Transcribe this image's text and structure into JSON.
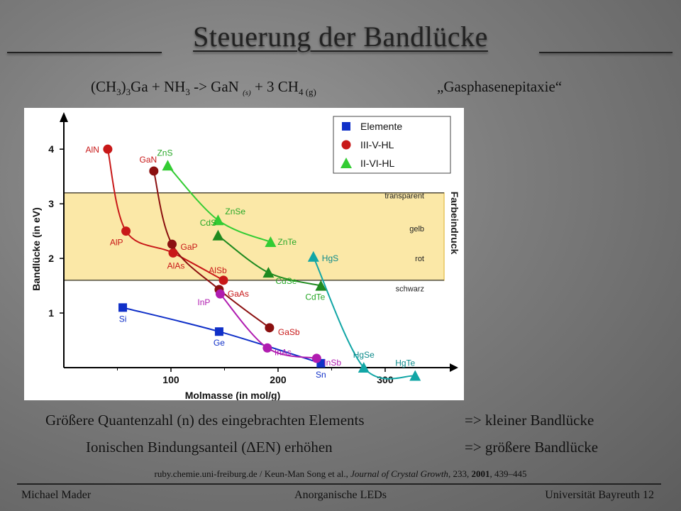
{
  "slide": {
    "title": "Steuerung der Bandlücke",
    "reaction": {
      "p1": "(CH",
      "s1": "3",
      "p2": ")",
      "s2": "3",
      "p3": "Ga + NH",
      "s3": "3",
      "p4": " -> GaN ",
      "s4": "(s)",
      "p5": " + 3 CH",
      "s5": "4",
      "s6": " (g)"
    },
    "epitaxy": "„Gasphasenepitaxie“",
    "statement1": "Größere Quantenzahl (n) des eingebrachten Elements",
    "arrow1": "=> kleiner Bandlücke",
    "statement2": "Ionischen Bindungsanteil (ΔEN) erhöhen",
    "arrow2": "=> größere Bandlücke",
    "reference": {
      "source": "ruby.chemie.uni-freiburg.de  /  Keun-Man Song et al., ",
      "journal": "Journal of Crystal Growth",
      "vol": ", 233, ",
      "year": "2001",
      "pages": ",  439–445"
    },
    "footer": {
      "left": "Michael Mader",
      "center": "Anorganische LEDs",
      "right": "Universität Bayreuth  12"
    }
  },
  "chart_data": {
    "type": "scatter",
    "xlabel": "Molmasse (in mol/g)",
    "ylabel": "Bandlücke  (in eV)",
    "right_label": "Farbeindruck",
    "xlim": [
      0,
      355
    ],
    "ylim": [
      0,
      4.6
    ],
    "xticks": [
      100,
      200,
      300
    ],
    "yticks": [
      1,
      2,
      3,
      4
    ],
    "bands": [
      {
        "label": "transparent",
        "y": 3.15
      },
      {
        "label": "gelb",
        "y": 2.55
      },
      {
        "label": "rot",
        "y": 2.0
      },
      {
        "label": "schwarz",
        "y": 1.45
      }
    ],
    "band_range": [
      1.6,
      3.2
    ],
    "colors": {
      "band": "#fbe8a7",
      "band_border": "#e7c660",
      "blue": "#1030c8",
      "red": "#c81818",
      "darkred": "#8b1010",
      "magenta": "#b01cb0",
      "green": "#33cc33",
      "darkgreen": "#1f8a1f",
      "teal": "#12a6a6",
      "label_red": "#c81818",
      "label_blue": "#1030c8",
      "label_green": "#28a828",
      "label_teal": "#0c8a8a"
    },
    "legend": [
      {
        "name": "Elemente",
        "marker": "square",
        "color": "#1030c8"
      },
      {
        "name": "III-V-HL",
        "marker": "circle",
        "color": "#c81818"
      },
      {
        "name": "II-VI-HL",
        "marker": "triangle",
        "color": "#33cc33"
      }
    ],
    "series": [
      {
        "name": "Elemente-row",
        "marker": "square",
        "color": "#1030c8",
        "label_color": "#1030c8",
        "points": [
          {
            "label": "Si",
            "x": 55,
            "y": 1.1
          },
          {
            "label": "Ge",
            "x": 145,
            "y": 0.66
          },
          {
            "label": "Sn",
            "x": 240,
            "y": 0.08
          }
        ]
      },
      {
        "name": "Al-row",
        "marker": "circle",
        "color": "#c81818",
        "label_color": "#c81818",
        "points": [
          {
            "label": "AlN",
            "x": 41,
            "y": 4.0
          },
          {
            "label": "AlP",
            "x": 58,
            "y": 2.5
          },
          {
            "label": "AlAs",
            "x": 102,
            "y": 2.1
          },
          {
            "label": "AlSb",
            "x": 149,
            "y": 1.6
          }
        ]
      },
      {
        "name": "Ga-row",
        "marker": "circle",
        "color": "#8b1010",
        "label_color": "#c81818",
        "points": [
          {
            "label": "GaN",
            "x": 84,
            "y": 3.6
          },
          {
            "label": "GaP",
            "x": 101,
            "y": 2.26
          },
          {
            "label": "GaAs",
            "x": 145,
            "y": 1.43
          },
          {
            "label": "GaSb",
            "x": 192,
            "y": 0.73
          }
        ]
      },
      {
        "name": "In-row",
        "marker": "circle",
        "color": "#b01cb0",
        "label_color": "#b01cb0",
        "points": [
          {
            "label": "InP",
            "x": 146,
            "y": 1.35
          },
          {
            "label": "InAs",
            "x": 190,
            "y": 0.36
          },
          {
            "label": "InSb",
            "x": 236,
            "y": 0.17
          }
        ]
      },
      {
        "name": "Zn-row",
        "marker": "triangle",
        "color": "#33cc33",
        "label_color": "#28a828",
        "points": [
          {
            "label": "ZnS",
            "x": 97,
            "y": 3.7
          },
          {
            "label": "ZnSe",
            "x": 144,
            "y": 2.7
          },
          {
            "label": "ZnTe",
            "x": 193,
            "y": 2.3
          }
        ]
      },
      {
        "name": "Cd-row",
        "marker": "triangle",
        "color": "#1f8a1f",
        "label_color": "#28a828",
        "points": [
          {
            "label": "CdS",
            "x": 144,
            "y": 2.42
          },
          {
            "label": "CdSe",
            "x": 191,
            "y": 1.74
          },
          {
            "label": "CdTe",
            "x": 240,
            "y": 1.5
          }
        ]
      },
      {
        "name": "Hg-row",
        "marker": "triangle",
        "color": "#12a6a6",
        "label_color": "#0c8a8a",
        "points": [
          {
            "label": "HgS",
            "x": 233,
            "y": 2.03
          },
          {
            "label": "HgSe",
            "x": 280,
            "y": 0.0
          },
          {
            "label": "HgTe",
            "x": 328,
            "y": -0.15
          }
        ]
      }
    ]
  }
}
